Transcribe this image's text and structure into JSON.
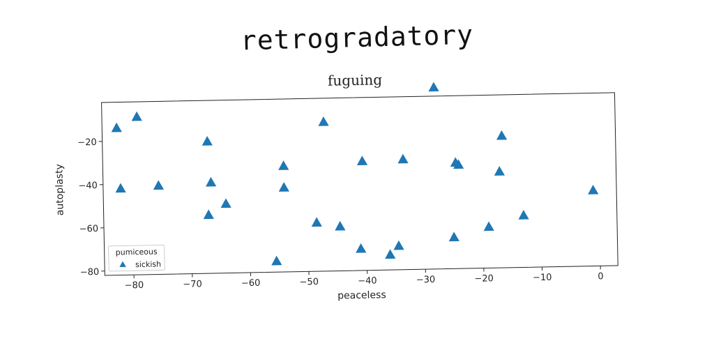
{
  "page": {
    "title": "retrogradatory"
  },
  "chart_data": {
    "type": "scatter",
    "title": "fuguing",
    "xlabel": "peaceless",
    "ylabel": "autoplasty",
    "xlim": [
      -85,
      3
    ],
    "ylim": [
      -82,
      -2
    ],
    "xticks": [
      -80,
      -70,
      -60,
      -50,
      -40,
      -30,
      -20,
      -10,
      0
    ],
    "yticks": [
      -80,
      -60,
      -40,
      -20
    ],
    "grid": false,
    "legend": {
      "title": "pumiceous",
      "placement": "lower-left"
    },
    "series": [
      {
        "name": "sickish",
        "marker": "triangle",
        "color": "#1f77b4",
        "points": [
          [
            -82.5,
            -14
          ],
          [
            -79,
            -9
          ],
          [
            -82,
            -42
          ],
          [
            -75.5,
            -41
          ],
          [
            -67,
            -21
          ],
          [
            -66.5,
            -40
          ],
          [
            -67,
            -55
          ],
          [
            -64,
            -50
          ],
          [
            -55.5,
            -77
          ],
          [
            -54,
            -33
          ],
          [
            -54,
            -43
          ],
          [
            -48.5,
            -59.5
          ],
          [
            -47,
            -13
          ],
          [
            -44.5,
            -61.5
          ],
          [
            -41,
            -72
          ],
          [
            -40.5,
            -31.5
          ],
          [
            -36,
            -75
          ],
          [
            -34.5,
            -71
          ],
          [
            -33.5,
            -31
          ],
          [
            -28,
            2
          ],
          [
            -25,
            -67.5
          ],
          [
            -24,
            -34
          ],
          [
            -19,
            -63
          ],
          [
            -17,
            -37.5
          ],
          [
            -16.5,
            -21
          ],
          [
            -13,
            -58
          ],
          [
            -1,
            -47
          ],
          [
            -24.5,
            -33
          ]
        ]
      }
    ]
  }
}
